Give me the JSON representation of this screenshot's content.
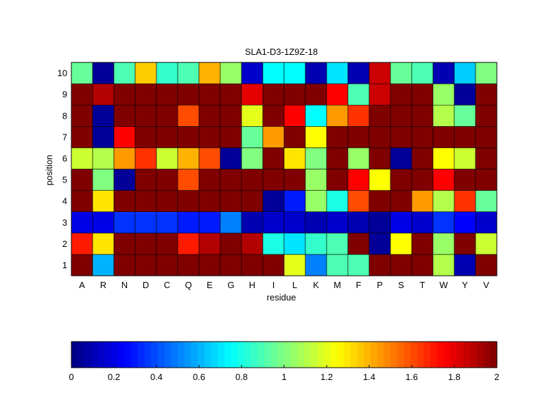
{
  "chart_data": {
    "type": "heatmap",
    "title": "SLA1-D3-1Z9Z-18",
    "xlabel": "residue",
    "ylabel": "position",
    "x_categories": [
      "A",
      "R",
      "N",
      "D",
      "C",
      "Q",
      "E",
      "G",
      "H",
      "I",
      "L",
      "K",
      "M",
      "F",
      "P",
      "S",
      "T",
      "W",
      "Y",
      "V"
    ],
    "y_categories": [
      "1",
      "2",
      "3",
      "4",
      "5",
      "6",
      "7",
      "8",
      "9",
      "10"
    ],
    "values": [
      [
        2.0,
        0.6,
        2.0,
        2.0,
        2.0,
        2.0,
        2.0,
        2.0,
        2.0,
        2.0,
        1.2,
        0.5,
        0.9,
        0.9,
        2.0,
        2.0,
        2.0,
        1.1,
        0.1,
        2.0
      ],
      [
        1.7,
        1.3,
        2.0,
        2.0,
        2.0,
        1.7,
        1.9,
        2.0,
        1.9,
        0.8,
        0.7,
        0.85,
        0.9,
        2.0,
        0.05,
        1.25,
        2.0,
        1.05,
        2.0,
        1.15
      ],
      [
        0.2,
        0.2,
        0.35,
        0.35,
        0.35,
        0.3,
        0.3,
        0.5,
        0.1,
        0.15,
        0.15,
        0.1,
        0.15,
        0.1,
        0.05,
        0.2,
        0.15,
        0.35,
        0.25,
        0.15
      ],
      [
        2.0,
        1.3,
        2.0,
        2.0,
        2.0,
        2.0,
        2.0,
        2.0,
        2.0,
        0.05,
        0.3,
        1.05,
        0.8,
        1.6,
        2.0,
        2.0,
        1.45,
        1.1,
        1.65,
        0.95
      ],
      [
        2.0,
        1.0,
        0.05,
        2.0,
        2.0,
        1.6,
        2.0,
        2.0,
        2.0,
        2.0,
        2.0,
        1.05,
        2.0,
        1.75,
        1.25,
        2.0,
        2.0,
        1.75,
        2.0,
        2.0
      ],
      [
        1.15,
        1.1,
        1.45,
        1.65,
        1.15,
        1.4,
        1.6,
        0.05,
        1.0,
        2.0,
        1.3,
        1.0,
        2.0,
        1.05,
        2.0,
        0.05,
        2.0,
        1.25,
        1.15,
        2.0
      ],
      [
        2.0,
        0.05,
        1.75,
        2.0,
        2.0,
        2.0,
        2.0,
        2.0,
        0.95,
        1.45,
        2.0,
        1.25,
        2.0,
        2.0,
        2.0,
        2.0,
        2.0,
        2.0,
        2.0,
        2.0
      ],
      [
        2.0,
        0.05,
        2.0,
        2.0,
        2.0,
        1.6,
        2.0,
        2.0,
        1.2,
        2.0,
        1.75,
        0.75,
        1.45,
        1.65,
        2.0,
        2.0,
        2.0,
        1.1,
        0.95,
        2.0
      ],
      [
        2.0,
        1.9,
        2.0,
        2.0,
        2.0,
        2.0,
        2.0,
        2.0,
        1.8,
        2.0,
        2.0,
        2.0,
        1.75,
        0.9,
        1.85,
        2.0,
        2.0,
        1.05,
        0.05,
        2.0
      ],
      [
        0.95,
        0.05,
        0.9,
        1.35,
        0.85,
        0.9,
        1.4,
        1.05,
        0.15,
        0.75,
        0.75,
        0.1,
        0.7,
        0.1,
        1.85,
        0.95,
        0.9,
        0.1,
        0.65,
        1.0
      ]
    ],
    "zlim": [
      0,
      2
    ],
    "colormap": "jet",
    "colorbar": {
      "position": "bottom",
      "ticks": [
        0,
        0.2,
        0.4,
        0.6,
        0.8,
        1,
        1.2,
        1.4,
        1.6,
        1.8,
        2
      ],
      "tick_labels": [
        "0",
        "0.2",
        "0.4",
        "0.6",
        "0.8",
        "1",
        "1.2",
        "1.4",
        "1.6",
        "1.8",
        "2"
      ]
    },
    "grid": true
  }
}
